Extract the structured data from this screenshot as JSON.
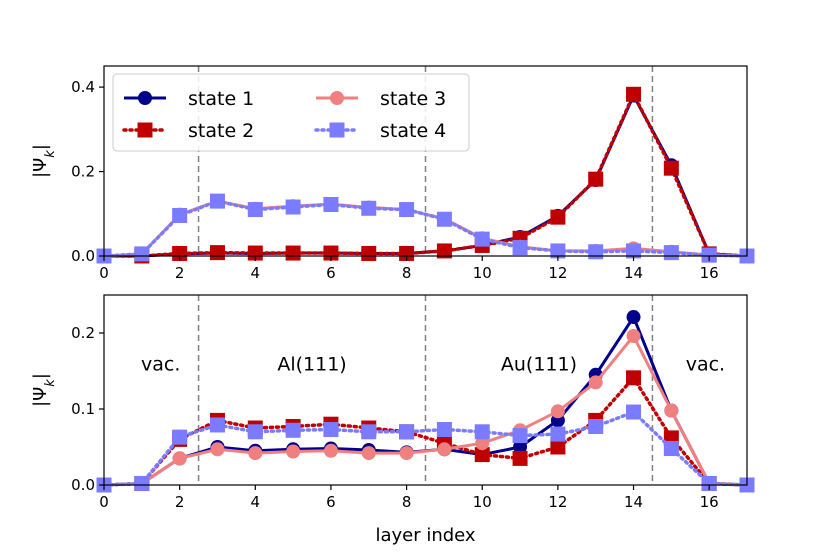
{
  "chart_data": [
    {
      "type": "line",
      "panel": "top",
      "ylabel": "|Ψ_k|",
      "xlabel": "",
      "xlim": [
        0,
        17
      ],
      "ylim": [
        0,
        0.45
      ],
      "xticks": [
        0,
        2,
        4,
        6,
        8,
        10,
        12,
        14,
        16
      ],
      "yticks": [
        0.0,
        0.2,
        0.4
      ],
      "ytick_labels": [
        "0.0",
        "0.2",
        "0.4"
      ],
      "vlines": [
        2.5,
        8.5,
        14.5
      ],
      "legend": {
        "placement": "top-left",
        "columns": 2
      },
      "x": [
        0,
        1,
        2,
        3,
        4,
        5,
        6,
        7,
        8,
        9,
        10,
        11,
        12,
        13,
        14,
        15,
        16,
        17
      ],
      "series": [
        {
          "name": "state 1",
          "color": "#00008b",
          "style": "solid",
          "marker": "circle",
          "values": [
            0.0,
            0.0,
            0.005,
            0.007,
            0.006,
            0.007,
            0.007,
            0.006,
            0.006,
            0.012,
            0.025,
            0.045,
            0.095,
            0.18,
            0.38,
            0.215,
            0.005,
            0.0
          ]
        },
        {
          "name": "state 2",
          "color": "#c00000",
          "style": "dotted",
          "marker": "square",
          "values": [
            0.0,
            0.0,
            0.006,
            0.008,
            0.007,
            0.007,
            0.007,
            0.006,
            0.006,
            0.012,
            0.025,
            0.042,
            0.092,
            0.182,
            0.383,
            0.208,
            0.005,
            0.0
          ]
        },
        {
          "name": "state 3",
          "color": "#f08080",
          "style": "solid",
          "marker": "circle",
          "values": [
            0.0,
            0.005,
            0.098,
            0.13,
            0.112,
            0.118,
            0.123,
            0.115,
            0.11,
            0.088,
            0.042,
            0.022,
            0.012,
            0.012,
            0.018,
            0.01,
            0.002,
            0.0
          ]
        },
        {
          "name": "state 4",
          "color": "#7b7bff",
          "style": "dotted",
          "marker": "square",
          "values": [
            0.0,
            0.005,
            0.096,
            0.13,
            0.11,
            0.116,
            0.122,
            0.113,
            0.11,
            0.087,
            0.04,
            0.02,
            0.012,
            0.01,
            0.012,
            0.008,
            0.002,
            0.0
          ]
        }
      ]
    },
    {
      "type": "line",
      "panel": "bottom",
      "ylabel": "|Ψ_k|",
      "xlabel": "layer index",
      "xlim": [
        0,
        17
      ],
      "ylim": [
        0,
        0.25
      ],
      "xticks": [
        0,
        2,
        4,
        6,
        8,
        10,
        12,
        14,
        16
      ],
      "yticks": [
        0.0,
        0.1,
        0.2
      ],
      "ytick_labels": [
        "0.0",
        "0.1",
        "0.2"
      ],
      "vlines": [
        2.5,
        8.5,
        14.5
      ],
      "annotations": [
        {
          "text": "vac.",
          "x": 1.5,
          "y": 0.16
        },
        {
          "text": "Al(111)",
          "x": 5.5,
          "y": 0.16
        },
        {
          "text": "Au(111)",
          "x": 11.5,
          "y": 0.16
        },
        {
          "text": "vac.",
          "x": 15.9,
          "y": 0.16
        }
      ],
      "x": [
        0,
        1,
        2,
        3,
        4,
        5,
        6,
        7,
        8,
        9,
        10,
        11,
        12,
        13,
        14,
        15,
        16,
        17
      ],
      "series": [
        {
          "name": "state 1",
          "color": "#00008b",
          "style": "solid",
          "marker": "circle",
          "values": [
            0.0,
            0.002,
            0.035,
            0.05,
            0.045,
            0.047,
            0.048,
            0.046,
            0.043,
            0.047,
            0.04,
            0.05,
            0.085,
            0.145,
            0.221,
            0.098,
            0.002,
            0.0
          ]
        },
        {
          "name": "state 2",
          "color": "#c00000",
          "style": "dotted",
          "marker": "square",
          "values": [
            0.0,
            0.002,
            0.06,
            0.085,
            0.075,
            0.077,
            0.08,
            0.075,
            0.07,
            0.055,
            0.04,
            0.035,
            0.05,
            0.085,
            0.141,
            0.062,
            0.002,
            0.0
          ]
        },
        {
          "name": "state 3",
          "color": "#f08080",
          "style": "solid",
          "marker": "circle",
          "values": [
            0.0,
            0.002,
            0.035,
            0.047,
            0.042,
            0.044,
            0.045,
            0.042,
            0.042,
            0.047,
            0.055,
            0.072,
            0.097,
            0.135,
            0.196,
            0.098,
            0.002,
            0.0
          ]
        },
        {
          "name": "state 4",
          "color": "#7b7bff",
          "style": "dotted",
          "marker": "square",
          "values": [
            0.0,
            0.002,
            0.063,
            0.079,
            0.07,
            0.072,
            0.073,
            0.07,
            0.07,
            0.073,
            0.07,
            0.065,
            0.067,
            0.077,
            0.096,
            0.048,
            0.002,
            0.0
          ]
        }
      ]
    }
  ]
}
